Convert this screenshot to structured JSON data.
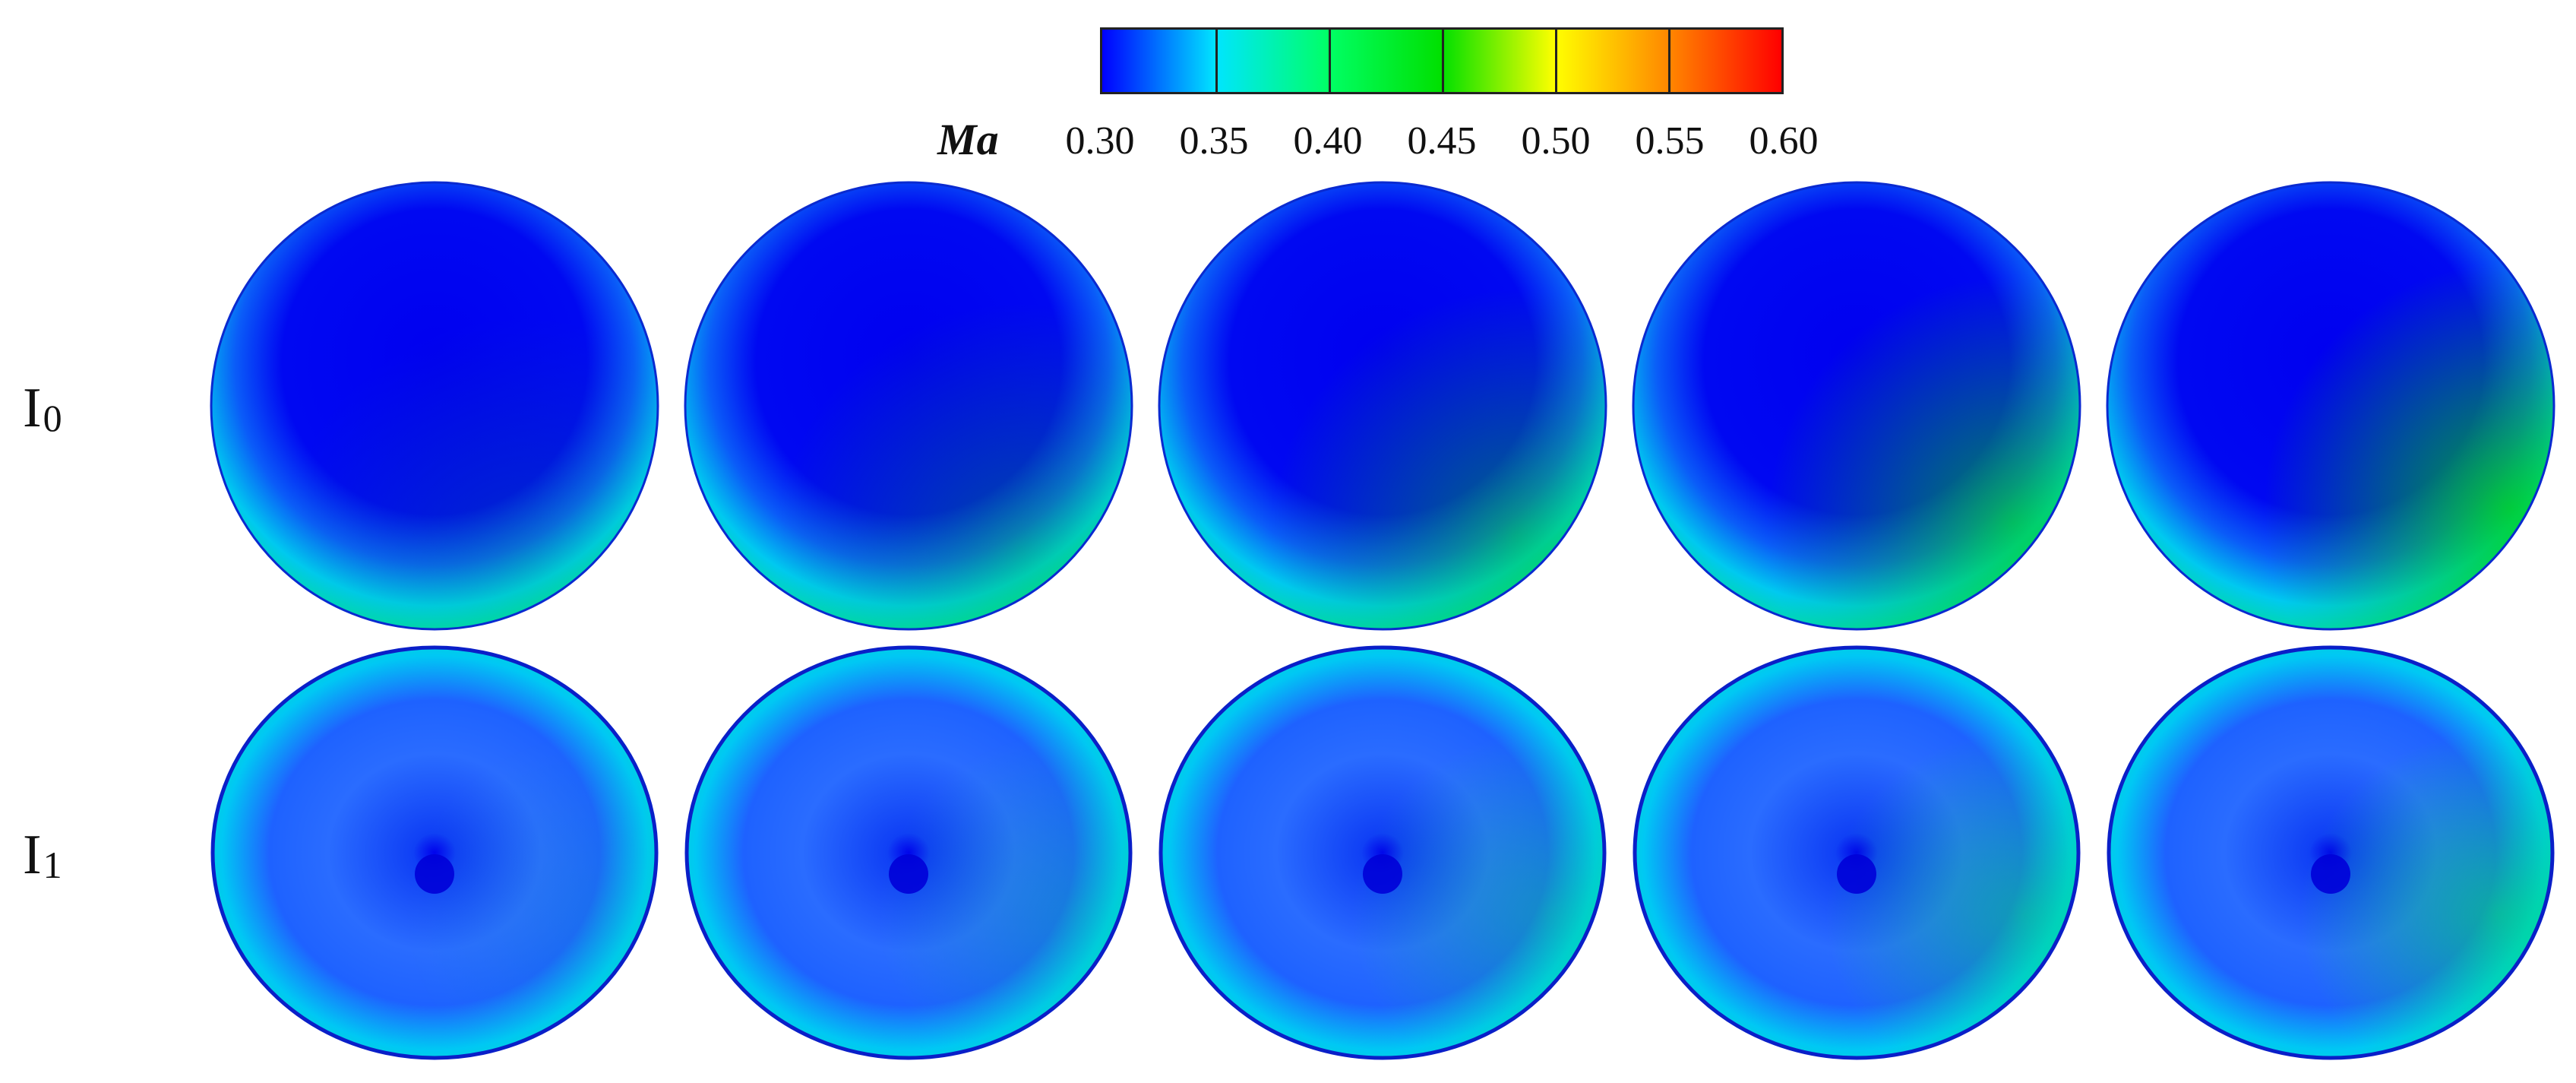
{
  "colorbar": {
    "variable": "Ma",
    "ticks": [
      "0.30",
      "0.35",
      "0.40",
      "0.45",
      "0.50",
      "0.55",
      "0.60"
    ],
    "colors": [
      "#0000ff",
      "#00e5ff",
      "#00ff66",
      "#00e000",
      "#ffff00",
      "#ff8800",
      "#ff0000"
    ],
    "min": 0.3,
    "max": 0.6
  },
  "rows": [
    {
      "label": "I",
      "subscript": "0"
    },
    {
      "label": "I",
      "subscript": "1"
    }
  ],
  "columns": 5
}
